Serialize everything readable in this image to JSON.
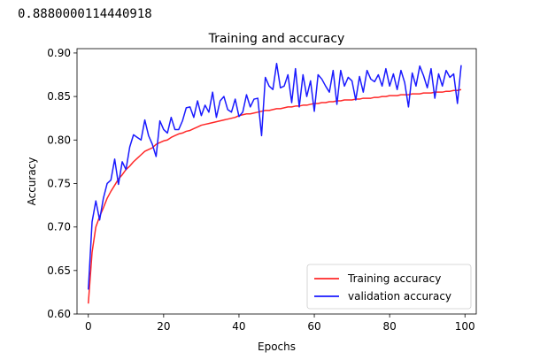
{
  "cell_output": {
    "text": "0.8880000114440918"
  },
  "chart_data": {
    "type": "line",
    "title": "Training and accuracy",
    "xlabel": "Epochs",
    "ylabel": "Accuracy",
    "xlim": [
      -3,
      103
    ],
    "ylim": [
      0.6,
      0.905
    ],
    "xticks": [
      0,
      20,
      40,
      60,
      80,
      100
    ],
    "yticks": [
      0.6,
      0.65,
      0.7,
      0.75,
      0.8,
      0.85,
      0.9
    ],
    "ytick_labels": [
      "0.60",
      "0.65",
      "0.70",
      "0.75",
      "0.80",
      "0.85",
      "0.90"
    ],
    "legend_position": "lower-right",
    "series": [
      {
        "name": "Training accuracy",
        "color": "#ff2828",
        "values": [
          0.612,
          0.671,
          0.7,
          0.712,
          0.722,
          0.733,
          0.741,
          0.748,
          0.755,
          0.76,
          0.766,
          0.77,
          0.775,
          0.779,
          0.783,
          0.787,
          0.789,
          0.791,
          0.795,
          0.797,
          0.799,
          0.8,
          0.803,
          0.805,
          0.807,
          0.808,
          0.81,
          0.811,
          0.813,
          0.815,
          0.817,
          0.818,
          0.819,
          0.82,
          0.821,
          0.822,
          0.823,
          0.824,
          0.825,
          0.826,
          0.828,
          0.829,
          0.83,
          0.83,
          0.831,
          0.832,
          0.833,
          0.834,
          0.834,
          0.835,
          0.836,
          0.836,
          0.837,
          0.838,
          0.838,
          0.839,
          0.839,
          0.84,
          0.84,
          0.841,
          0.842,
          0.842,
          0.843,
          0.843,
          0.844,
          0.844,
          0.845,
          0.845,
          0.846,
          0.846,
          0.846,
          0.847,
          0.847,
          0.848,
          0.848,
          0.848,
          0.849,
          0.849,
          0.85,
          0.85,
          0.851,
          0.851,
          0.851,
          0.852,
          0.852,
          0.852,
          0.853,
          0.853,
          0.853,
          0.854,
          0.854,
          0.854,
          0.855,
          0.855,
          0.855,
          0.856,
          0.856,
          0.857,
          0.857,
          0.858
        ]
      },
      {
        "name": "validation accuracy",
        "color": "#1a1aff",
        "values": [
          0.628,
          0.706,
          0.73,
          0.708,
          0.733,
          0.75,
          0.754,
          0.778,
          0.749,
          0.775,
          0.766,
          0.792,
          0.806,
          0.803,
          0.8,
          0.823,
          0.805,
          0.795,
          0.781,
          0.822,
          0.812,
          0.808,
          0.826,
          0.812,
          0.812,
          0.822,
          0.837,
          0.838,
          0.826,
          0.845,
          0.828,
          0.84,
          0.832,
          0.855,
          0.826,
          0.845,
          0.85,
          0.835,
          0.832,
          0.847,
          0.827,
          0.832,
          0.852,
          0.838,
          0.847,
          0.848,
          0.805,
          0.872,
          0.862,
          0.858,
          0.888,
          0.86,
          0.862,
          0.875,
          0.843,
          0.882,
          0.838,
          0.875,
          0.85,
          0.868,
          0.833,
          0.875,
          0.87,
          0.862,
          0.855,
          0.88,
          0.841,
          0.88,
          0.862,
          0.872,
          0.868,
          0.846,
          0.873,
          0.855,
          0.88,
          0.87,
          0.867,
          0.875,
          0.862,
          0.882,
          0.862,
          0.876,
          0.858,
          0.88,
          0.866,
          0.838,
          0.877,
          0.862,
          0.885,
          0.874,
          0.86,
          0.882,
          0.848,
          0.876,
          0.862,
          0.88,
          0.872,
          0.876,
          0.842,
          0.886
        ]
      }
    ]
  }
}
